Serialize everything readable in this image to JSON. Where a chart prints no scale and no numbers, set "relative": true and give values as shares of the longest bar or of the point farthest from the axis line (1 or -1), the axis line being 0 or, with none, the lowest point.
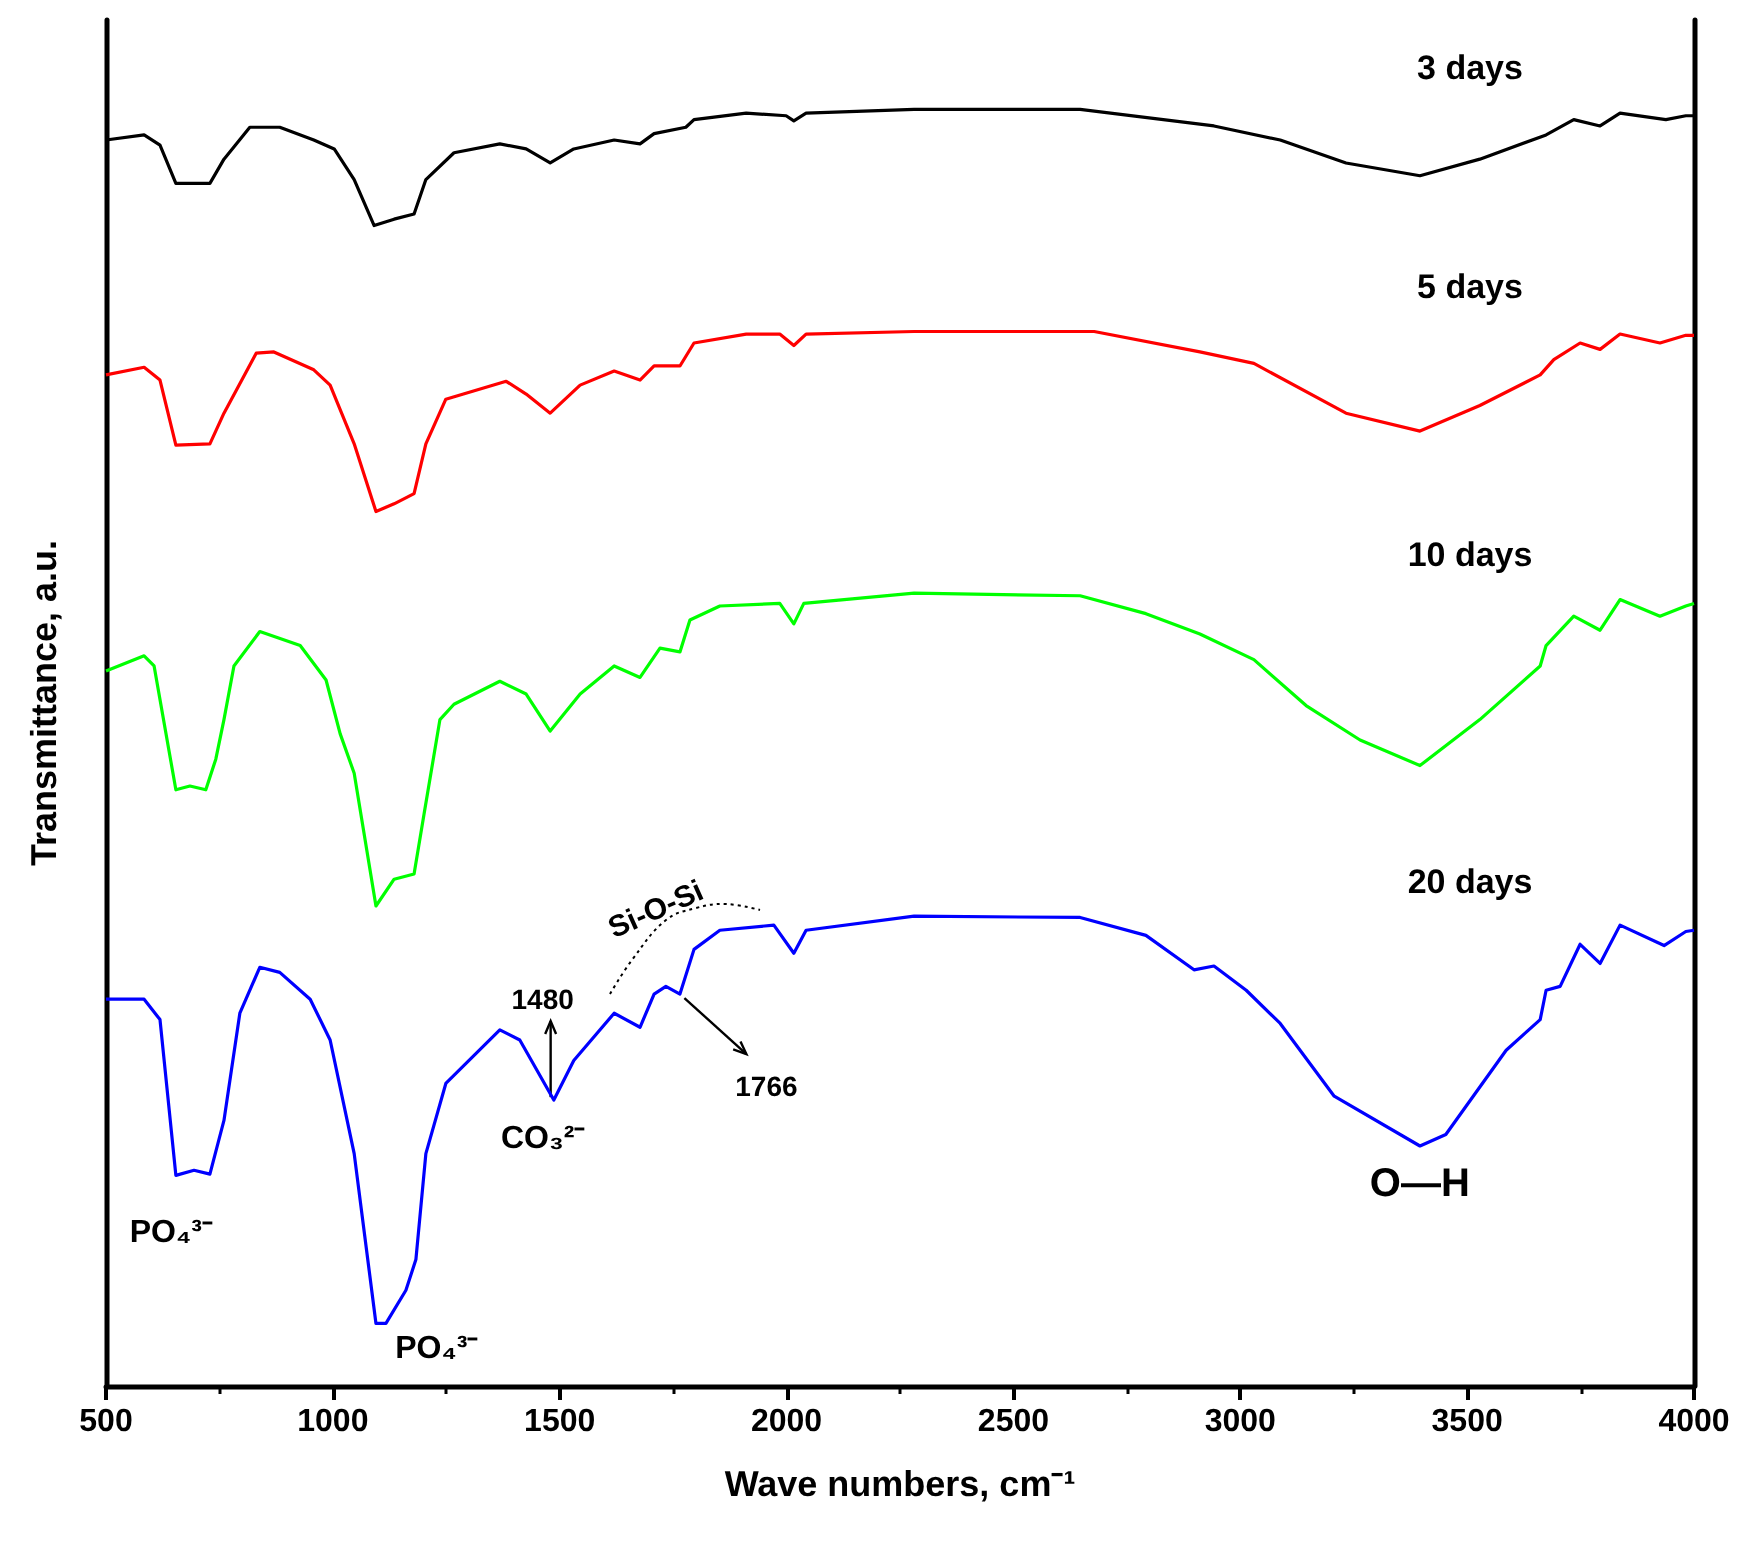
{
  "chart_data": {
    "type": "line",
    "relative": true,
    "xlabel": "Wave numbers, cm⁻¹",
    "ylabel": "Transmittance, a.u.",
    "xlim": [
      500,
      4000
    ],
    "xticks": [
      500,
      1000,
      1500,
      2000,
      2500,
      3000,
      3500,
      4000
    ],
    "series": [
      {
        "name": "3 days",
        "color": "#000000",
        "x": [
          500,
          584,
          619,
          654,
          729,
          760,
          817,
          883,
          958,
          1003,
          1047,
          1091,
          1135,
          1179,
          1205,
          1267,
          1368,
          1426,
          1479,
          1531,
          1620,
          1677,
          1708,
          1778,
          1796,
          1911,
          1999,
          2016,
          2043,
          2281,
          2647,
          2942,
          3088,
          3233,
          3396,
          3528,
          3674,
          3735,
          3793,
          3837,
          3938,
          3982,
          4000
        ],
        "values": [
          0.976,
          0.98,
          0.972,
          0.942,
          0.942,
          0.961,
          0.986,
          0.986,
          0.976,
          0.969,
          0.945,
          0.909,
          0.914,
          0.918,
          0.945,
          0.966,
          0.973,
          0.969,
          0.958,
          0.969,
          0.976,
          0.973,
          0.981,
          0.986,
          0.992,
          0.997,
          0.995,
          0.991,
          0.997,
          1.0,
          1.0,
          0.987,
          0.976,
          0.958,
          0.948,
          0.961,
          0.98,
          0.992,
          0.987,
          0.997,
          0.992,
          0.995,
          0.995
        ]
      },
      {
        "name": "5 days",
        "color": "#ff0000",
        "x": [
          500,
          584,
          619,
          654,
          729,
          760,
          831,
          870,
          958,
          994,
          1047,
          1095,
          1135,
          1179,
          1205,
          1249,
          1382,
          1426,
          1479,
          1545,
          1620,
          1677,
          1708,
          1765,
          1796,
          1911,
          1985,
          2016,
          2043,
          2281,
          2678,
          2911,
          3030,
          3233,
          3396,
          3528,
          3661,
          3691,
          3749,
          3793,
          3837,
          3925,
          3982,
          4000
        ],
        "values": [
          0.792,
          0.798,
          0.788,
          0.737,
          0.738,
          0.762,
          0.809,
          0.81,
          0.796,
          0.784,
          0.738,
          0.685,
          0.691,
          0.699,
          0.738,
          0.773,
          0.787,
          0.777,
          0.762,
          0.784,
          0.795,
          0.788,
          0.799,
          0.799,
          0.817,
          0.824,
          0.824,
          0.815,
          0.824,
          0.826,
          0.826,
          0.81,
          0.801,
          0.762,
          0.748,
          0.768,
          0.792,
          0.804,
          0.817,
          0.812,
          0.824,
          0.817,
          0.823,
          0.823
        ]
      },
      {
        "name": "10 days",
        "color": "#00ff00",
        "x": [
          500,
          584,
          606,
          654,
          685,
          720,
          742,
          760,
          782,
          839,
          928,
          985,
          1016,
          1047,
          1095,
          1135,
          1179,
          1201,
          1236,
          1267,
          1368,
          1426,
          1479,
          1545,
          1620,
          1677,
          1721,
          1765,
          1787,
          1853,
          1985,
          2016,
          2038,
          2281,
          2647,
          2792,
          2911,
          3030,
          3145,
          3264,
          3396,
          3528,
          3661,
          3674,
          3735,
          3793,
          3837,
          3925,
          3982,
          4000
        ],
        "values": [
          0.56,
          0.572,
          0.564,
          0.467,
          0.47,
          0.467,
          0.491,
          0.522,
          0.564,
          0.591,
          0.58,
          0.553,
          0.511,
          0.48,
          0.376,
          0.397,
          0.401,
          0.448,
          0.522,
          0.534,
          0.552,
          0.542,
          0.513,
          0.542,
          0.564,
          0.555,
          0.578,
          0.575,
          0.6,
          0.611,
          0.613,
          0.597,
          0.613,
          0.621,
          0.619,
          0.605,
          0.589,
          0.569,
          0.533,
          0.506,
          0.486,
          0.522,
          0.564,
          0.58,
          0.603,
          0.592,
          0.616,
          0.603,
          0.611,
          0.613
        ]
      },
      {
        "name": "20 days",
        "color": "#0000ff",
        "x": [
          500,
          584,
          619,
          654,
          694,
          729,
          760,
          795,
          839,
          883,
          950,
          994,
          1047,
          1095,
          1117,
          1161,
          1183,
          1205,
          1249,
          1368,
          1412,
          1487,
          1531,
          1620,
          1677,
          1708,
          1734,
          1765,
          1796,
          1853,
          1972,
          2016,
          2043,
          2281,
          2647,
          2792,
          2898,
          2942,
          3013,
          3088,
          3207,
          3396,
          3453,
          3586,
          3661,
          3674,
          3705,
          3749,
          3793,
          3837,
          3934,
          3982,
          4000
        ],
        "values": [
          0.303,
          0.303,
          0.287,
          0.165,
          0.169,
          0.166,
          0.208,
          0.292,
          0.328,
          0.324,
          0.303,
          0.271,
          0.182,
          0.049,
          0.049,
          0.075,
          0.099,
          0.182,
          0.237,
          0.279,
          0.271,
          0.224,
          0.255,
          0.292,
          0.281,
          0.307,
          0.313,
          0.307,
          0.342,
          0.357,
          0.361,
          0.339,
          0.357,
          0.368,
          0.367,
          0.353,
          0.326,
          0.329,
          0.31,
          0.284,
          0.227,
          0.188,
          0.197,
          0.263,
          0.287,
          0.31,
          0.313,
          0.346,
          0.331,
          0.361,
          0.345,
          0.356,
          0.357
        ]
      }
    ],
    "annotations": [
      {
        "text": "PO₄³⁻",
        "x": 700,
        "y": 0.165
      },
      {
        "text": "PO₄³⁻",
        "x": 1100,
        "y": 0.049
      },
      {
        "text": "CO₃²⁻",
        "x": 1480,
        "y": 0.22
      },
      {
        "text": "1480",
        "x": 1480,
        "y": 0.22
      },
      {
        "text": "1766",
        "x": 1766,
        "y": 0.307
      },
      "Si-O-Si",
      {
        "text": "O—H",
        "x": 3400,
        "y": 0.188
      }
    ]
  }
}
